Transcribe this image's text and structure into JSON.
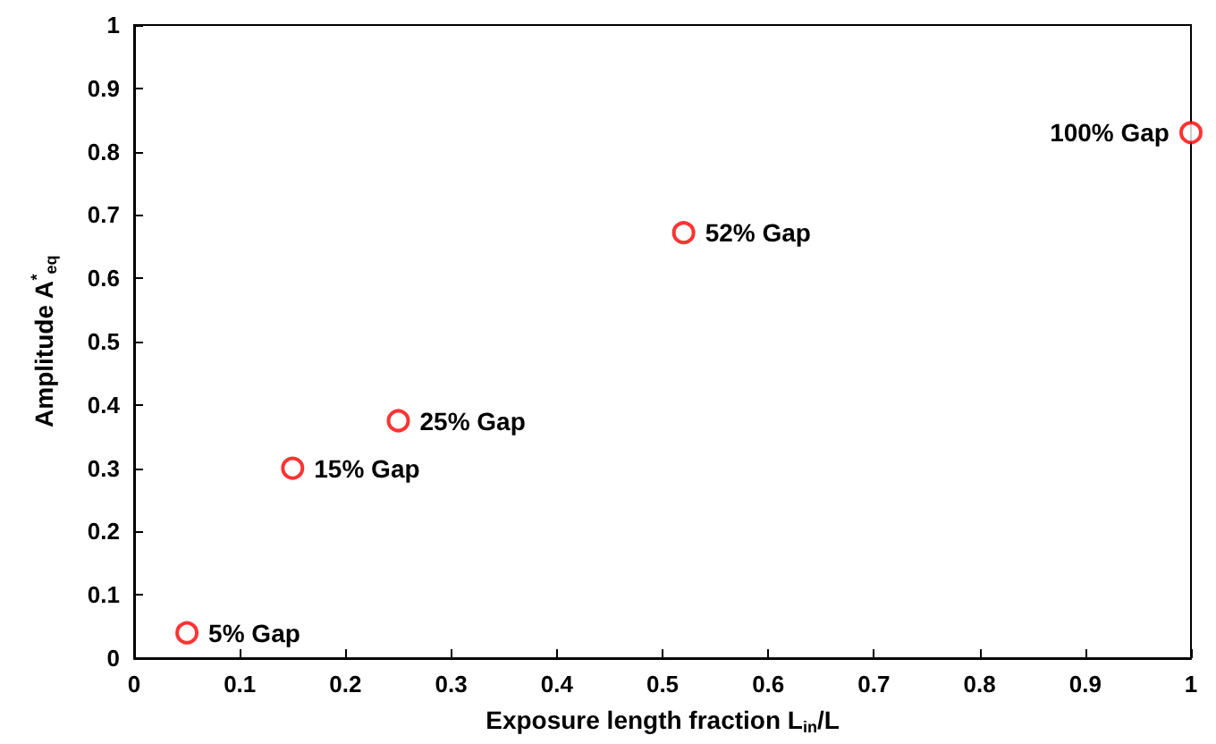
{
  "chart_data": {
    "type": "scatter",
    "xlabel": "Exposure length fraction L$_{in}$/L",
    "ylabel": "Amplitude A$^{*}$$_{eq}$",
    "x": [
      0.05,
      0.15,
      0.25,
      0.52,
      1.0
    ],
    "series": [
      {
        "color": "#ff0000",
        "values": [
          0.04,
          0.3,
          0.375,
          0.672,
          0.83
        ]
      }
    ],
    "marker": "circle",
    "grid": false,
    "xlim": [
      0,
      1
    ],
    "xticks": [
      0,
      0.1,
      0.2,
      0.3,
      0.4,
      0.5,
      0.6,
      0.7,
      0.8,
      0.9,
      1
    ],
    "ylim": [
      0,
      1
    ],
    "yticks": [
      0,
      0.1,
      0.2,
      0.3,
      0.4,
      0.5,
      0.6,
      0.7,
      0.8,
      0.9,
      1
    ],
    "annotations": [
      {
        "text": "5% Gap",
        "x": 0.05,
        "y": 0.04
      },
      {
        "text": "15% Gap",
        "x": 0.15,
        "y": 0.3
      },
      {
        "text": "25% Gap",
        "x": 0.25,
        "y": 0.375
      },
      {
        "text": "52% Gap",
        "x": 0.52,
        "y": 0.672
      },
      {
        "text": "100% Gap",
        "x": 1.0,
        "y": 0.83
      }
    ]
  }
}
